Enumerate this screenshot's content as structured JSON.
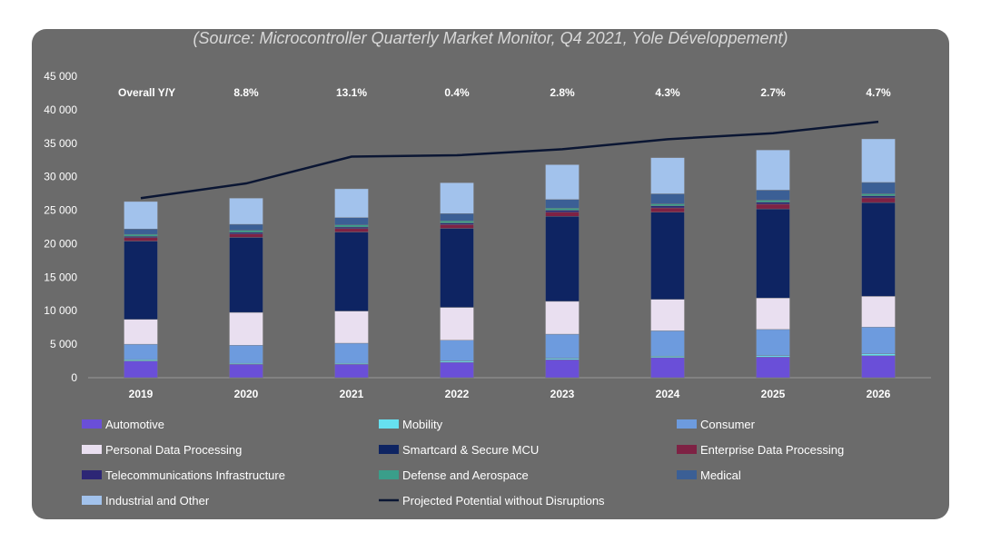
{
  "source_caption": "(Source: Microcontroller Quarterly Market Monitor, Q4 2021, Yole Développement)",
  "yoy_label": "Overall Y/Y",
  "yoy_values": [
    "8.8%",
    "13.1%",
    "0.4%",
    "2.8%",
    "4.3%",
    "2.7%",
    "4.7%"
  ],
  "chart_data": {
    "type": "bar",
    "stacked": true,
    "title": "",
    "xlabel": "",
    "ylabel": "",
    "ylim": [
      0,
      45000
    ],
    "yticks": [
      0,
      5000,
      10000,
      15000,
      20000,
      25000,
      30000,
      35000,
      40000,
      45000
    ],
    "ytick_labels": [
      "0",
      "5 000",
      "10 000",
      "15 000",
      "20 000",
      "25 000",
      "30 000",
      "35 000",
      "40 000",
      "45 000"
    ],
    "categories": [
      "2019",
      "2020",
      "2021",
      "2022",
      "2023",
      "2024",
      "2025",
      "2026"
    ],
    "grid": false,
    "legend_position": "bottom",
    "series": [
      {
        "name": "Automotive",
        "color": "#6a4fd8",
        "values": [
          2500,
          2000,
          2000,
          2300,
          2700,
          3000,
          3100,
          3300
        ]
      },
      {
        "name": "Mobility",
        "color": "#66e0f0",
        "values": [
          200,
          150,
          150,
          200,
          200,
          200,
          200,
          250
        ]
      },
      {
        "name": "Consumer",
        "color": "#6d9bde",
        "values": [
          2300,
          2700,
          3000,
          3100,
          3600,
          3800,
          3900,
          4000
        ]
      },
      {
        "name": "Personal Data Processing",
        "color": "#e9dff0",
        "values": [
          3700,
          4900,
          4800,
          4900,
          4900,
          4700,
          4700,
          4600
        ]
      },
      {
        "name": "Smartcard & Secure MCU",
        "color": "#0e2462",
        "values": [
          11700,
          11200,
          11800,
          11800,
          12700,
          13000,
          13300,
          14000
        ]
      },
      {
        "name": "Enterprise Data Processing",
        "color": "#7e2244",
        "values": [
          500,
          500,
          500,
          550,
          600,
          650,
          700,
          700
        ]
      },
      {
        "name": "Telecommunications Infrastructure",
        "color": "#2d2675",
        "values": [
          200,
          250,
          250,
          250,
          300,
          300,
          300,
          300
        ]
      },
      {
        "name": "Defense and Aerospace",
        "color": "#3a9e8a",
        "values": [
          300,
          300,
          300,
          300,
          300,
          300,
          300,
          300
        ]
      },
      {
        "name": "Medical",
        "color": "#3b5f95",
        "values": [
          800,
          900,
          1100,
          1100,
          1300,
          1500,
          1500,
          1700
        ]
      },
      {
        "name": "Industrial and Other",
        "color": "#a2c2ec",
        "values": [
          4100,
          3900,
          4300,
          4600,
          5200,
          5400,
          6000,
          6500
        ]
      }
    ],
    "line_series": {
      "name": "Projected Potential without Disruptions",
      "color": "#0b1633",
      "values": [
        26800,
        29000,
        33000,
        33200,
        34100,
        35600,
        36500,
        38200
      ]
    }
  }
}
